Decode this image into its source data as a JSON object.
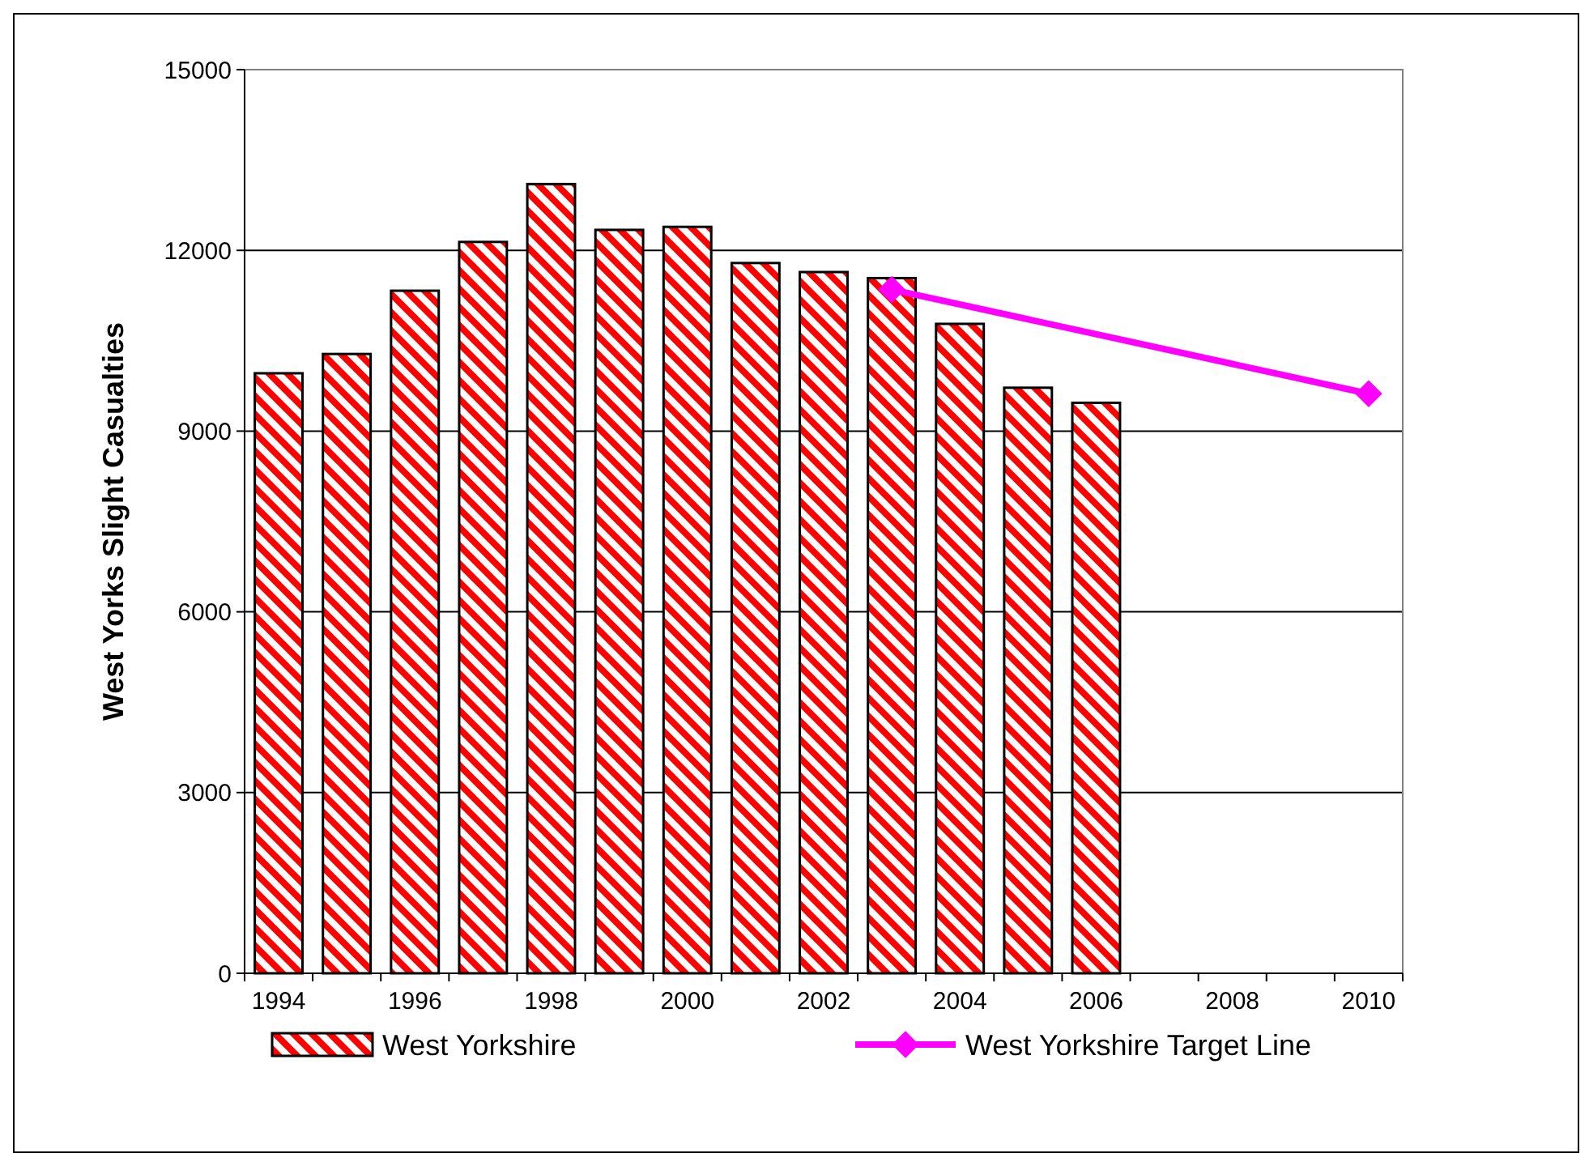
{
  "chart_data": {
    "type": "bar",
    "ylabel": "West Yorks Slight Casualties",
    "categories": [
      "1994",
      null,
      "1996",
      null,
      "1998",
      null,
      "2000",
      null,
      "2002",
      null,
      "2004",
      null,
      "2006",
      null,
      "2008",
      null,
      "2010"
    ],
    "series": [
      {
        "name": "West Yorkshire",
        "color": "#ff0000",
        "values": [
          9960,
          10280,
          11330,
          12140,
          13100,
          12340,
          12390,
          11790,
          11640,
          11540,
          10780,
          9720,
          9470,
          null,
          null,
          null,
          null
        ]
      },
      {
        "name": "West Yorkshire Target Line",
        "type": "line",
        "color": "#ff00ff",
        "marker": "diamond",
        "values": [
          null,
          null,
          null,
          null,
          null,
          null,
          null,
          null,
          null,
          11350,
          null,
          null,
          null,
          null,
          null,
          null,
          9620
        ]
      }
    ],
    "ylim": [
      0,
      15000
    ],
    "yticks": [
      0,
      3000,
      6000,
      9000,
      12000,
      15000
    ],
    "grid": "y",
    "legend": "bottom"
  }
}
